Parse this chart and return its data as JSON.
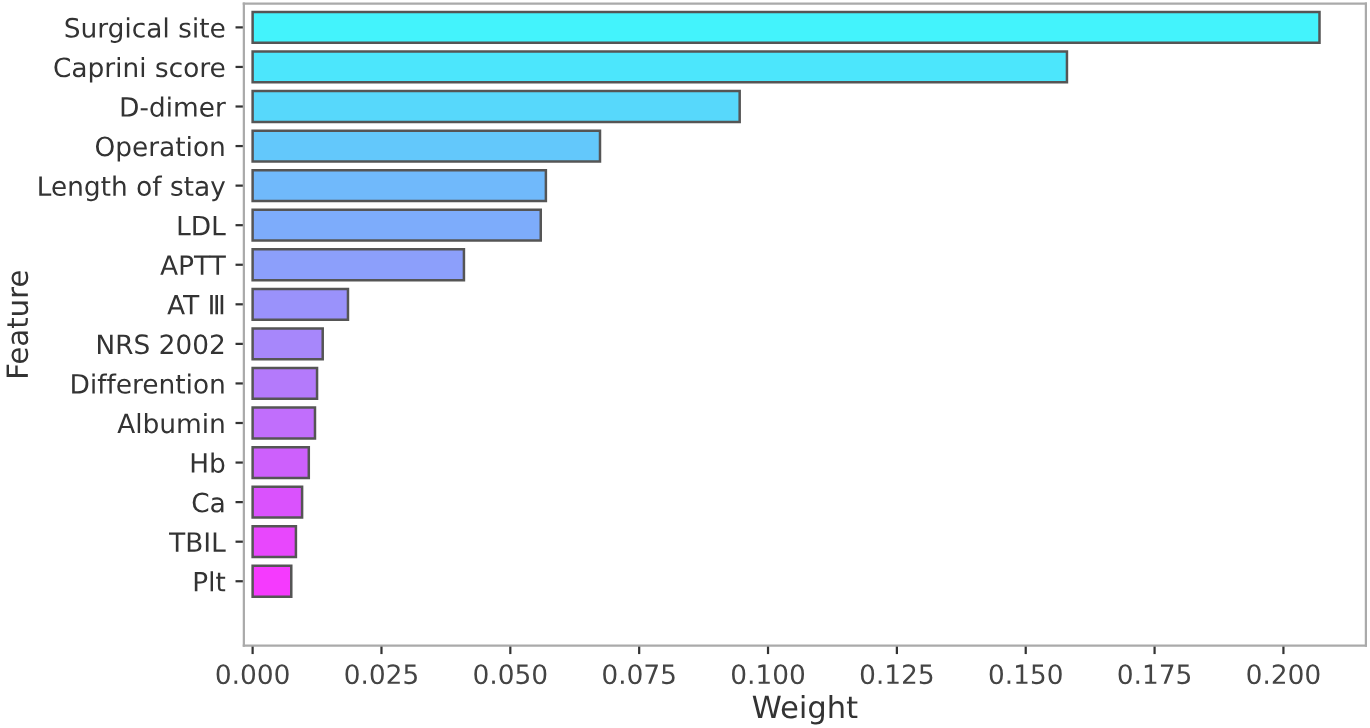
{
  "chart_data": {
    "type": "bar",
    "orientation": "horizontal",
    "xlabel": "Weight",
    "ylabel": "Feature",
    "categories": [
      "Surgical site",
      "Caprini score",
      "D-dimer",
      "Operation",
      "Length of stay",
      "LDL",
      "APTT",
      "AT Ⅲ",
      "NRS 2002",
      "Differention",
      "Albumin",
      "Hb",
      "Ca",
      "TBIL",
      "Plt"
    ],
    "values": [
      0.207,
      0.158,
      0.0945,
      0.0674,
      0.0569,
      0.0559,
      0.041,
      0.0185,
      0.0136,
      0.0125,
      0.0121,
      0.0109,
      0.0096,
      0.0084,
      0.0075
    ],
    "colors": [
      "#43f3fc",
      "#4ce6fc",
      "#57d8fb",
      "#63c8fb",
      "#70b9fb",
      "#7dacfb",
      "#8c9ffb",
      "#9a92fb",
      "#a787fb",
      "#b47afb",
      "#c16efc",
      "#cd60fc",
      "#da52fd",
      "#e847fd",
      "#f53afe"
    ],
    "xlim": [
      -0.0017,
      0.216
    ],
    "xticks": [
      {
        "value": 0,
        "label": "0.000"
      },
      {
        "value": 0.025,
        "label": "0.025"
      },
      {
        "value": 0.05,
        "label": "0.050"
      },
      {
        "value": 0.075,
        "label": "0.075"
      },
      {
        "value": 0.1,
        "label": "0.100"
      },
      {
        "value": 0.125,
        "label": "0.125"
      },
      {
        "value": 0.15,
        "label": "0.150"
      },
      {
        "value": 0.175,
        "label": "0.175"
      },
      {
        "value": 0.2,
        "label": "0.200"
      }
    ],
    "grid": false
  }
}
